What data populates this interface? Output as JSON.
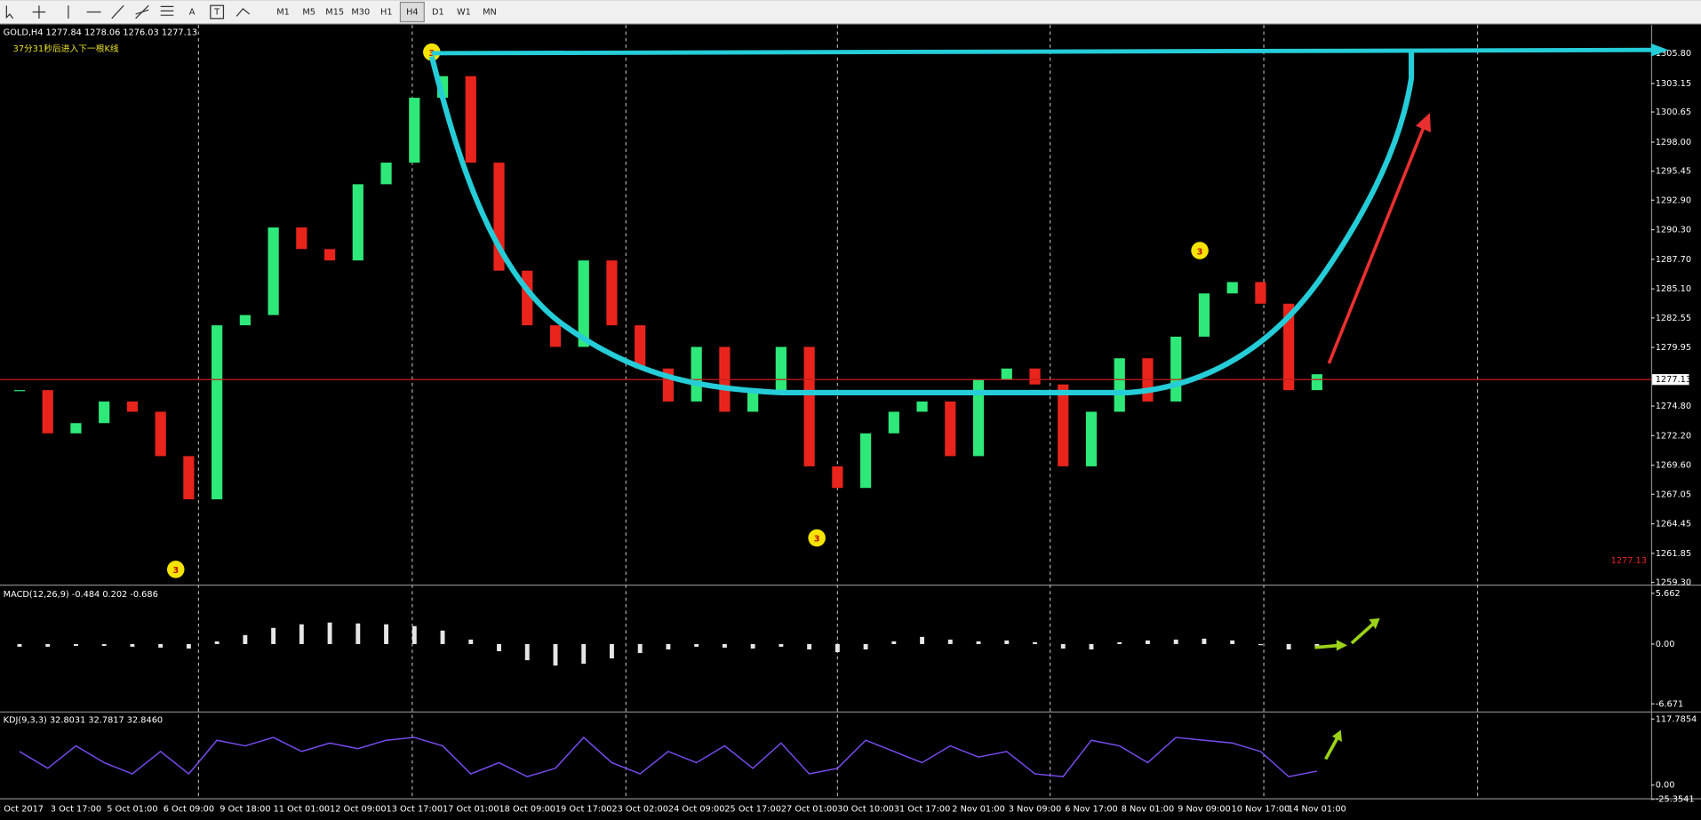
{
  "toolbar": {
    "tools": [
      "A",
      "T"
    ],
    "periods": [
      "M1",
      "M5",
      "M15",
      "M30",
      "H1",
      "H4",
      "D1",
      "W1",
      "MN"
    ],
    "active_period": "H4"
  },
  "chart_data": [
    {
      "type": "candlestick",
      "title": "GOLD,H4  1277.84 1278.06 1276.03 1277.13",
      "subtitle": "37分31秒后进入下一根K线",
      "marker_label": "3",
      "categories": [
        "2 Oct 2017",
        null,
        "3 Oct 17:00",
        null,
        "5 Oct 01:00",
        null,
        "6 Oct 09:00",
        null,
        "9 Oct 18:00",
        null,
        "11 Oct 01:00",
        null,
        "12 Oct 09:00",
        null,
        "13 Oct 17:00",
        null,
        "17 Oct 01:00",
        null,
        "18 Oct 09:00",
        null,
        "19 Oct 17:00",
        null,
        "23 Oct 02:00",
        null,
        "24 Oct 09:00",
        null,
        "25 Oct 17:00",
        null,
        "27 Oct 01:00",
        null,
        "30 Oct 10:00",
        null,
        "31 Oct 17:00",
        null,
        "2 Nov 01:00",
        null,
        "3 Nov 09:00",
        null,
        "6 Nov 17:00",
        null,
        "8 Nov 01:00",
        null,
        "9 Nov 09:00",
        null,
        "10 Nov 17:00",
        null,
        "14 Nov 01:00"
      ],
      "values": [
        1276.2,
        1272.4,
        1273.3,
        1275.2,
        1274.3,
        1270.4,
        1266.6,
        1281.9,
        1282.8,
        1290.5,
        1288.6,
        1287.6,
        1294.3,
        1296.2,
        1301.9,
        1303.8,
        1296.2,
        1286.7,
        1281.9,
        1280.0,
        1287.6,
        1281.9,
        1278.1,
        1275.2,
        1280.0,
        1274.3,
        1276.2,
        1280.0,
        1269.5,
        1267.6,
        1272.4,
        1274.3,
        1275.2,
        1270.4,
        1277.1,
        1278.1,
        1276.7,
        1269.5,
        1274.3,
        1279.0,
        1275.2,
        1280.9,
        1284.7,
        1285.7,
        1283.8,
        1276.2,
        1277.6
      ],
      "last": 1277.13,
      "up_color": "#2ee879",
      "down_color": "#e8241c",
      "ylim": [
        1259.2,
        1308.2
      ],
      "yticks": [
        {
          "value": 1305.8,
          "label": "1305.80"
        },
        {
          "value": 1303.15,
          "label": "1303.15"
        },
        {
          "value": 1300.65,
          "label": "1300.65"
        },
        {
          "value": 1298.0,
          "label": "1298.00"
        },
        {
          "value": 1295.45,
          "label": "1295.45"
        },
        {
          "value": 1292.9,
          "label": "1292.90"
        },
        {
          "value": 1290.3,
          "label": "1290.30"
        },
        {
          "value": 1287.7,
          "label": "1287.70"
        },
        {
          "value": 1285.1,
          "label": "1285.10"
        },
        {
          "value": 1282.55,
          "label": "1282.55"
        },
        {
          "value": 1279.95,
          "label": "1279.95"
        },
        {
          "value": 1274.8,
          "label": "1274.80"
        },
        {
          "value": 1272.2,
          "label": "1272.20"
        },
        {
          "value": 1269.6,
          "label": "1269.60"
        },
        {
          "value": 1267.05,
          "label": "1267.05"
        },
        {
          "value": 1264.45,
          "label": "1264.45"
        },
        {
          "value": 1261.85,
          "label": "1261.85"
        },
        {
          "value": 1259.3,
          "label": "1259.30"
        }
      ]
    },
    {
      "type": "bar",
      "title": "MACD(12,26,9) -0.484 0.202 -0.686",
      "color": "#e6e6e6",
      "values": [
        -0.3,
        -0.3,
        -0.2,
        -0.2,
        -0.3,
        -0.4,
        -0.5,
        0.3,
        1.0,
        1.8,
        2.2,
        2.4,
        2.3,
        2.2,
        2.0,
        1.5,
        0.5,
        -0.8,
        -1.8,
        -2.4,
        -2.2,
        -1.6,
        -1.0,
        -0.6,
        -0.3,
        -0.4,
        -0.5,
        -0.3,
        -0.6,
        -0.9,
        -0.6,
        0.3,
        0.8,
        0.5,
        0.3,
        0.4,
        0.2,
        -0.5,
        -0.6,
        0.2,
        0.4,
        0.5,
        0.6,
        0.4,
        0.0,
        -0.6,
        -0.5
      ],
      "ylim": [
        -6.671,
        5.662
      ],
      "yticks": [
        5.662,
        {
          "value": 0,
          "label": "0.00"
        },
        -6.671
      ]
    },
    {
      "type": "line",
      "title": "KDJ(9,3,3) 32.8031 32.7817 32.8460",
      "color": "#7a4cf0",
      "values": [
        60,
        30,
        70,
        40,
        20,
        60,
        20,
        80,
        70,
        85,
        60,
        75,
        65,
        80,
        85,
        70,
        20,
        40,
        15,
        30,
        85,
        40,
        20,
        60,
        40,
        70,
        30,
        75,
        20,
        30,
        80,
        60,
        40,
        70,
        50,
        60,
        20,
        15,
        80,
        70,
        40,
        85,
        80,
        75,
        60,
        15,
        25
      ],
      "ylim": [
        -25.3541,
        117.7854
      ],
      "yticks": [
        117.7854,
        {
          "value": 0,
          "label": "0.00"
        },
        -25.3541
      ]
    }
  ]
}
